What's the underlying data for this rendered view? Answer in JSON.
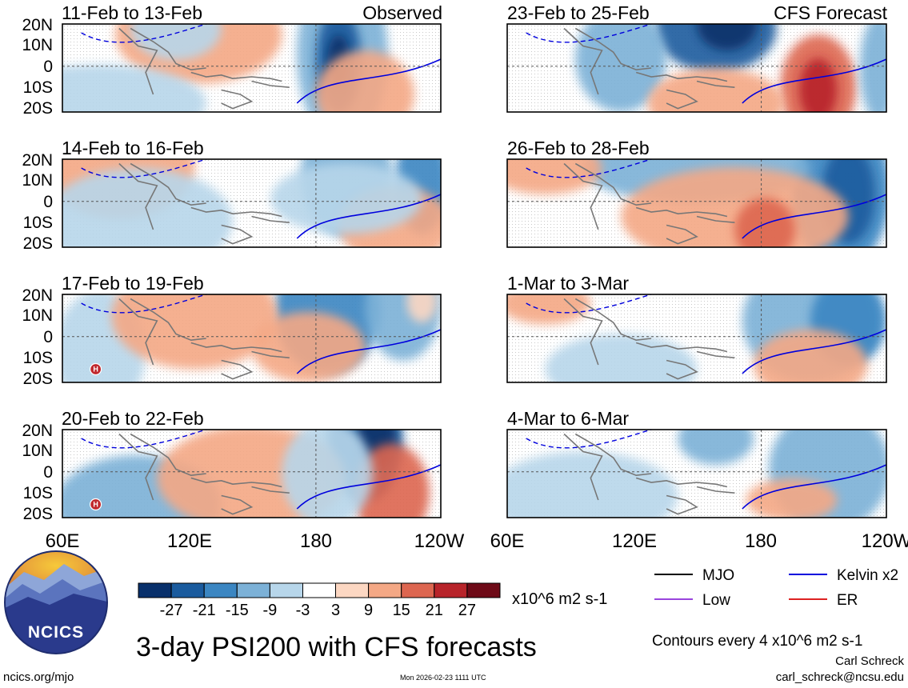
{
  "chart_data": {
    "type": "heatmap",
    "title": "3-day PSI200 with CFS forecasts",
    "variable": "PSI200 anomaly",
    "units": "x10^6 m2 s-1",
    "x_axis": {
      "ticks": [
        "60E",
        "120E",
        "180",
        "120W"
      ],
      "range": "60E to 120W"
    },
    "y_axis": {
      "ticks": [
        "20N",
        "10N",
        "0",
        "10S",
        "20S"
      ],
      "range": "20S to 20N"
    },
    "panels": [
      {
        "label": "11-Feb to 13-Feb",
        "tag": "Observed",
        "source": "observed"
      },
      {
        "label": "14-Feb to 16-Feb",
        "tag": "",
        "source": "observed"
      },
      {
        "label": "17-Feb to 19-Feb",
        "tag": "",
        "source": "observed"
      },
      {
        "label": "20-Feb to 22-Feb",
        "tag": "",
        "source": "observed"
      },
      {
        "label": "23-Feb to 25-Feb",
        "tag": "CFS Forecast",
        "source": "forecast"
      },
      {
        "label": "26-Feb to 28-Feb",
        "tag": "",
        "source": "forecast"
      },
      {
        "label": "1-Mar to 3-Mar",
        "tag": "",
        "source": "forecast"
      },
      {
        "label": "4-Mar to 6-Mar",
        "tag": "",
        "source": "forecast"
      }
    ],
    "colorbar": {
      "ticks": [
        "-27",
        "-21",
        "-15",
        "-9",
        "-3",
        "3",
        "9",
        "15",
        "21",
        "27"
      ],
      "colors": [
        "#08306b",
        "#1a5b9e",
        "#3b86c2",
        "#7cb1d7",
        "#b7d6ea",
        "#ffffff",
        "#fcd7c2",
        "#f4a885",
        "#dd6650",
        "#b8242a",
        "#6e0a17"
      ]
    },
    "legend": [
      {
        "label": "MJO",
        "color": "#000000"
      },
      {
        "label": "Kelvin x2",
        "color": "#0000dd"
      },
      {
        "label": "Low",
        "color": "#9944dd"
      },
      {
        "label": "ER",
        "color": "#dd2222"
      }
    ],
    "contour_note": "Contours every 4 x10^6 m2 s-1",
    "marker_label": "H"
  },
  "footer": {
    "logo_text": "NCICS",
    "url": "ncics.org/mjo",
    "timestamp": "Mon 2026-02-23 1111 UTC",
    "author": "Carl Schreck",
    "email": "carl_schreck@ncsu.edu"
  }
}
